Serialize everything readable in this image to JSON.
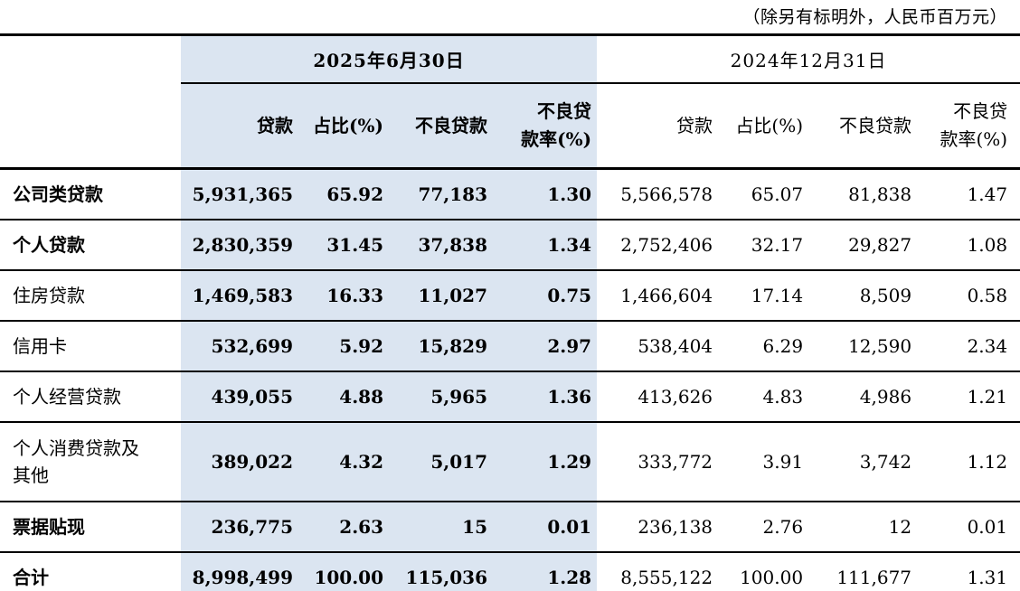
{
  "note": "（除另有标明外，人民币百万元）",
  "colors": {
    "highlight_bg": "#dbe5f1",
    "rule_color": "#000000",
    "text": "#000000"
  },
  "table": {
    "period_2025": "2025年6月30日",
    "period_2024": "2024年12月31日",
    "columns": {
      "loan": "贷款",
      "share": "占比(%)",
      "npl": "不良贷款",
      "npl_ratio": "不良贷\n款率(%)"
    },
    "rows": [
      {
        "label": "公司类贷款",
        "p2025": [
          "5,931,365",
          "65.92",
          "77,183",
          "1.30"
        ],
        "p2024": [
          "5,566,578",
          "65.07",
          "81,838",
          "1.47"
        ]
      },
      {
        "label": "个人贷款",
        "p2025": [
          "2,830,359",
          "31.45",
          "37,838",
          "1.34"
        ],
        "p2024": [
          "2,752,406",
          "32.17",
          "29,827",
          "1.08"
        ]
      },
      {
        "label": "住房贷款",
        "p2025": [
          "1,469,583",
          "16.33",
          "11,027",
          "0.75"
        ],
        "p2024": [
          "1,466,604",
          "17.14",
          "8,509",
          "0.58"
        ]
      },
      {
        "label": "信用卡",
        "p2025": [
          "532,699",
          "5.92",
          "15,829",
          "2.97"
        ],
        "p2024": [
          "538,404",
          "6.29",
          "12,590",
          "2.34"
        ]
      },
      {
        "label": "个人经营贷款",
        "p2025": [
          "439,055",
          "4.88",
          "5,965",
          "1.36"
        ],
        "p2024": [
          "413,626",
          "4.83",
          "4,986",
          "1.21"
        ]
      },
      {
        "label": "个人消费贷款及\n其他",
        "p2025": [
          "389,022",
          "4.32",
          "5,017",
          "1.29"
        ],
        "p2024": [
          "333,772",
          "3.91",
          "3,742",
          "1.12"
        ]
      },
      {
        "label": "票据贴现",
        "p2025": [
          "236,775",
          "2.63",
          "15",
          "0.01"
        ],
        "p2024": [
          "236,138",
          "2.76",
          "12",
          "0.01"
        ]
      },
      {
        "label": "合计",
        "p2025": [
          "8,998,499",
          "100.00",
          "115,036",
          "1.28"
        ],
        "p2024": [
          "8,555,122",
          "100.00",
          "111,677",
          "1.31"
        ]
      }
    ]
  }
}
